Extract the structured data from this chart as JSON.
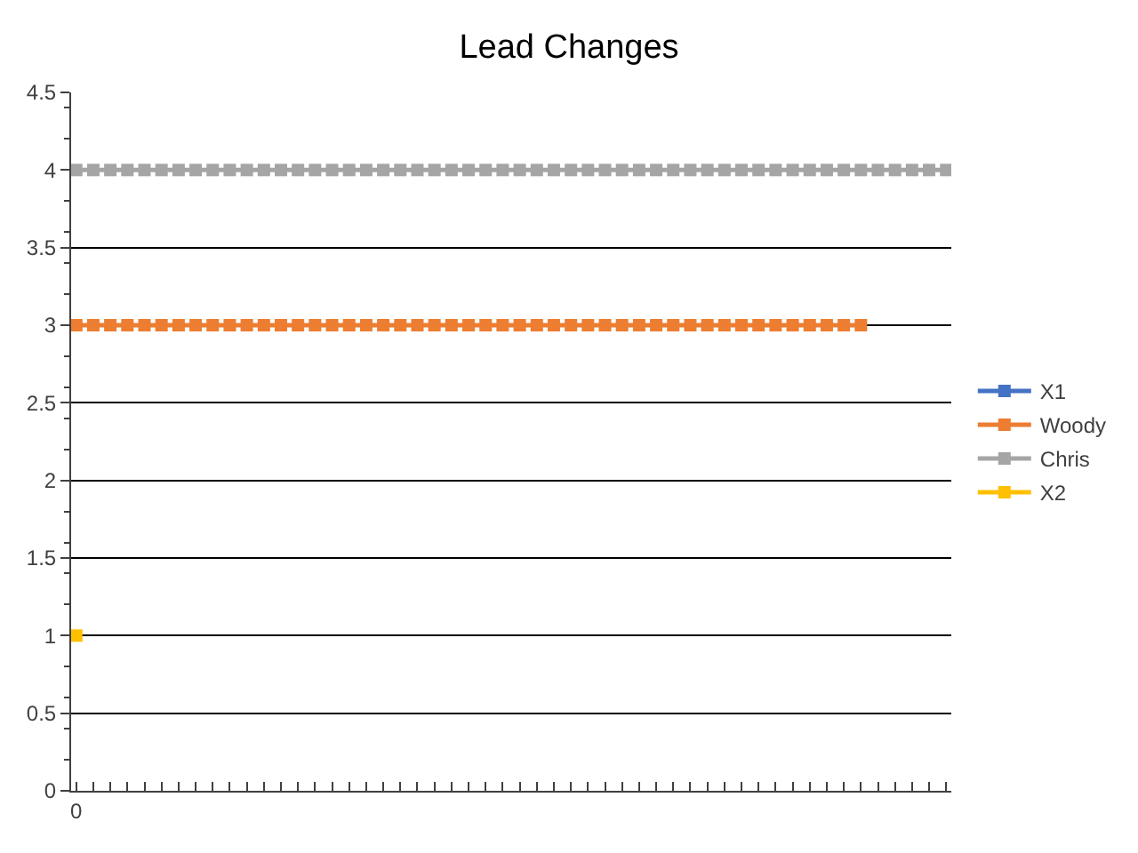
{
  "chart_data": {
    "type": "line",
    "title": "Lead Changes",
    "categories": [
      "0",
      null,
      null,
      null,
      null,
      null,
      null,
      null,
      null,
      null,
      null,
      null,
      null,
      null,
      null,
      null,
      null,
      null,
      null,
      null,
      null,
      null,
      null,
      null,
      null,
      null,
      null,
      null,
      null,
      null,
      null,
      null,
      null,
      null,
      null,
      null,
      null,
      null,
      null,
      null,
      null,
      null,
      null,
      null,
      null,
      null,
      null,
      null,
      null,
      null,
      null,
      null
    ],
    "series": [
      {
        "name": "X1",
        "color": "#4472c4",
        "values": [
          null,
          null,
          null,
          null,
          null,
          null,
          null,
          null,
          null,
          null,
          null,
          null,
          null,
          null,
          null,
          null,
          null,
          null,
          null,
          null,
          null,
          null,
          null,
          null,
          null,
          null,
          null,
          null,
          null,
          null,
          null,
          null,
          null,
          null,
          null,
          null,
          null,
          null,
          null,
          null,
          null,
          null,
          null,
          null,
          null,
          null,
          null,
          null,
          null,
          null,
          null,
          null
        ]
      },
      {
        "name": "Woody",
        "color": "#ed7d31",
        "values": [
          3,
          3,
          3,
          3,
          3,
          3,
          3,
          3,
          3,
          3,
          3,
          3,
          3,
          3,
          3,
          3,
          3,
          3,
          3,
          3,
          3,
          3,
          3,
          3,
          3,
          3,
          3,
          3,
          3,
          3,
          3,
          3,
          3,
          3,
          3,
          3,
          3,
          3,
          3,
          3,
          3,
          3,
          3,
          3,
          3,
          3,
          3,
          null,
          null,
          null,
          null,
          null
        ]
      },
      {
        "name": "Chris",
        "color": "#a5a5a5",
        "values": [
          4,
          4,
          4,
          4,
          4,
          4,
          4,
          4,
          4,
          4,
          4,
          4,
          4,
          4,
          4,
          4,
          4,
          4,
          4,
          4,
          4,
          4,
          4,
          4,
          4,
          4,
          4,
          4,
          4,
          4,
          4,
          4,
          4,
          4,
          4,
          4,
          4,
          4,
          4,
          4,
          4,
          4,
          4,
          4,
          4,
          4,
          4,
          4,
          4,
          4,
          4,
          4
        ]
      },
      {
        "name": "X2",
        "color": "#ffc000",
        "values": [
          1,
          null,
          null,
          null,
          null,
          null,
          null,
          null,
          null,
          null,
          null,
          null,
          null,
          null,
          null,
          null,
          null,
          null,
          null,
          null,
          null,
          null,
          null,
          null,
          null,
          null,
          null,
          null,
          null,
          null,
          null,
          null,
          null,
          null,
          null,
          null,
          null,
          null,
          null,
          null,
          null,
          null,
          null,
          null,
          null,
          null,
          null,
          null,
          null,
          null,
          null,
          null
        ]
      }
    ],
    "ylim": [
      0,
      4.5
    ],
    "yticks": [
      0,
      0.5,
      1,
      1.5,
      2,
      2.5,
      3,
      3.5,
      4,
      4.5
    ],
    "grid": "y",
    "legend": "right",
    "marker": "square",
    "line_style": "solid"
  }
}
